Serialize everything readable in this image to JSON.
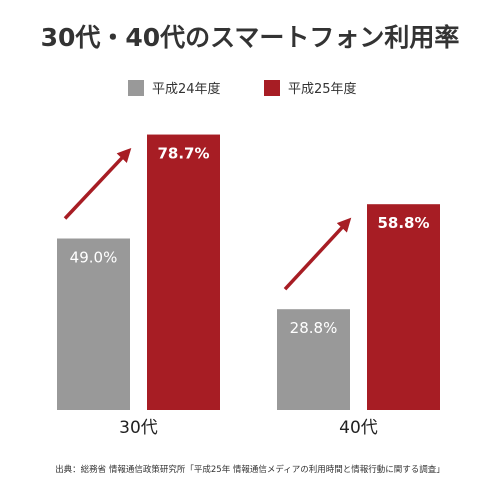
{
  "chart_data": {
    "type": "bar",
    "title": "30代・40代のスマートフォン利用率",
    "categories": [
      "30代",
      "40代"
    ],
    "series": [
      {
        "name": "平成24年度",
        "values": [
          49.0,
          28.8
        ],
        "labels": [
          "49.0%",
          "28.8%"
        ],
        "color": "#999999"
      },
      {
        "name": "平成25年度",
        "values": [
          78.7,
          58.8
        ],
        "labels": [
          "78.7%",
          "58.8%"
        ],
        "color": "#a71d24"
      }
    ],
    "ylim": [
      0,
      100
    ],
    "grid": false,
    "legend": "top-center",
    "trend_arrow_color": "#a71d24",
    "source": "出典：総務省 情報通信政策研究所「平成25年 情報通信メディアの利用時間と情報行動に関する調査」"
  }
}
